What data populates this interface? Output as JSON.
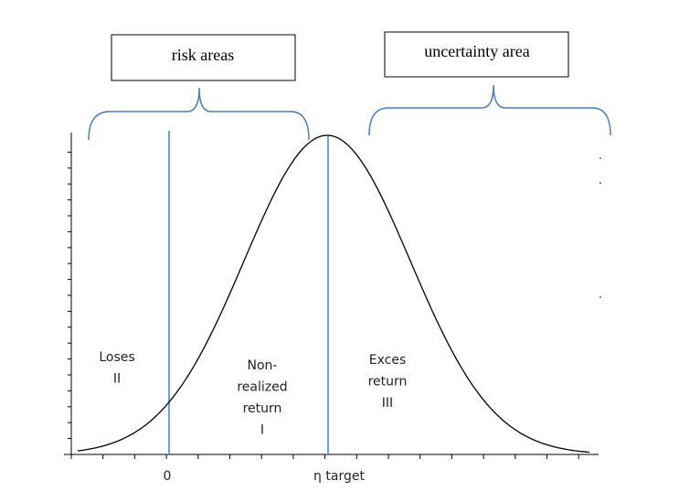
{
  "boxes": [
    {
      "label": "risk areas"
    },
    {
      "label": "uncertainty area"
    }
  ],
  "regions": [
    {
      "lines": [
        "Loses",
        "II"
      ]
    },
    {
      "lines": [
        "Non-",
        "realized",
        "return",
        "I"
      ]
    },
    {
      "lines": [
        "Exces",
        "return",
        "III"
      ]
    }
  ],
  "axis_labels": [
    "0",
    "η target"
  ]
}
